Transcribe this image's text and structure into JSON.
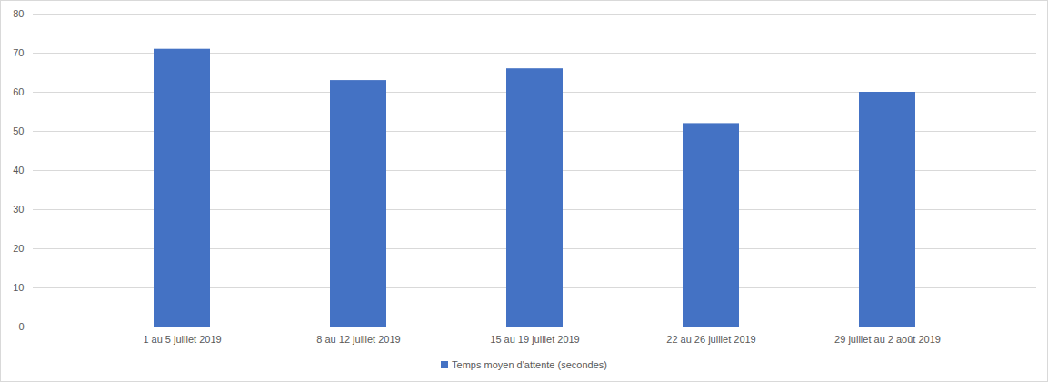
{
  "chart_data": {
    "type": "bar",
    "categories": [
      "1 au 5 juillet 2019",
      "8 au 12 juillet 2019",
      "15 au 19 juillet 2019",
      "22 au 26 juillet 2019",
      "29 juillet au 2 août 2019"
    ],
    "series": [
      {
        "name": "Temps moyen d'attente (secondes)",
        "color": "#4472c4",
        "values": [
          71,
          63,
          66,
          52,
          60
        ]
      }
    ],
    "ylim": [
      0,
      80
    ],
    "yticks": [
      0,
      10,
      20,
      30,
      40,
      50,
      60,
      70,
      80
    ],
    "grid": true,
    "legend": "bottom"
  }
}
